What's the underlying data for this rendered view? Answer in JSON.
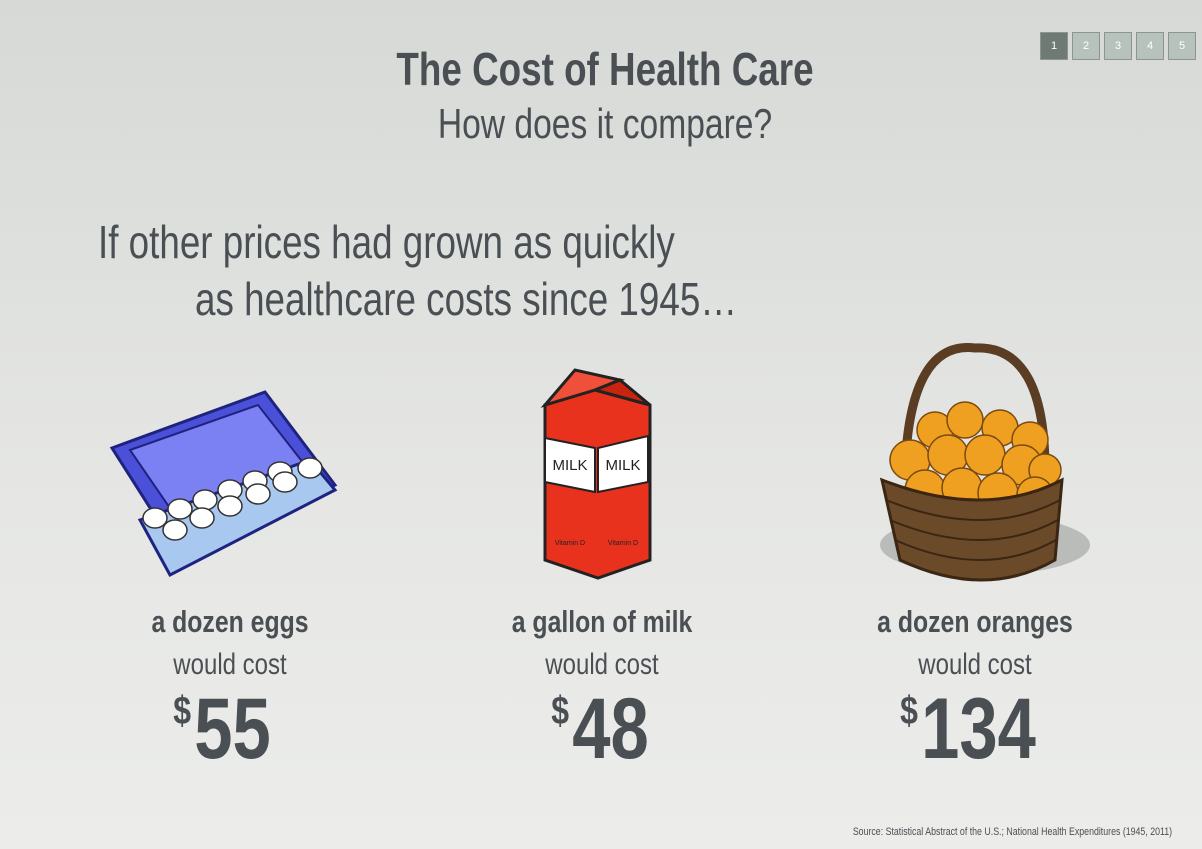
{
  "header": {
    "title": "The Cost of Health Care",
    "subtitle": "How does it compare?"
  },
  "pager": [
    1,
    2,
    3,
    4,
    5
  ],
  "lead": [
    "If other prices had grown as quickly",
    "as healthcare costs since 1945…"
  ],
  "items": [
    {
      "name": "a dozen eggs",
      "note": "would cost",
      "currency": "$",
      "price": 55
    },
    {
      "name": "a gallon of milk",
      "note": "would cost",
      "currency": "$",
      "price": 48,
      "carton_text": [
        "MILK",
        "MILK"
      ],
      "carton_subtext": [
        "Vitamin D",
        "Vitamin D"
      ]
    },
    {
      "name": "a dozen oranges",
      "note": "would cost",
      "currency": "$",
      "price": 134
    }
  ],
  "source": "Source: Statistical Abstract of the U.S.; National Health Expenditures (1945, 2011)"
}
